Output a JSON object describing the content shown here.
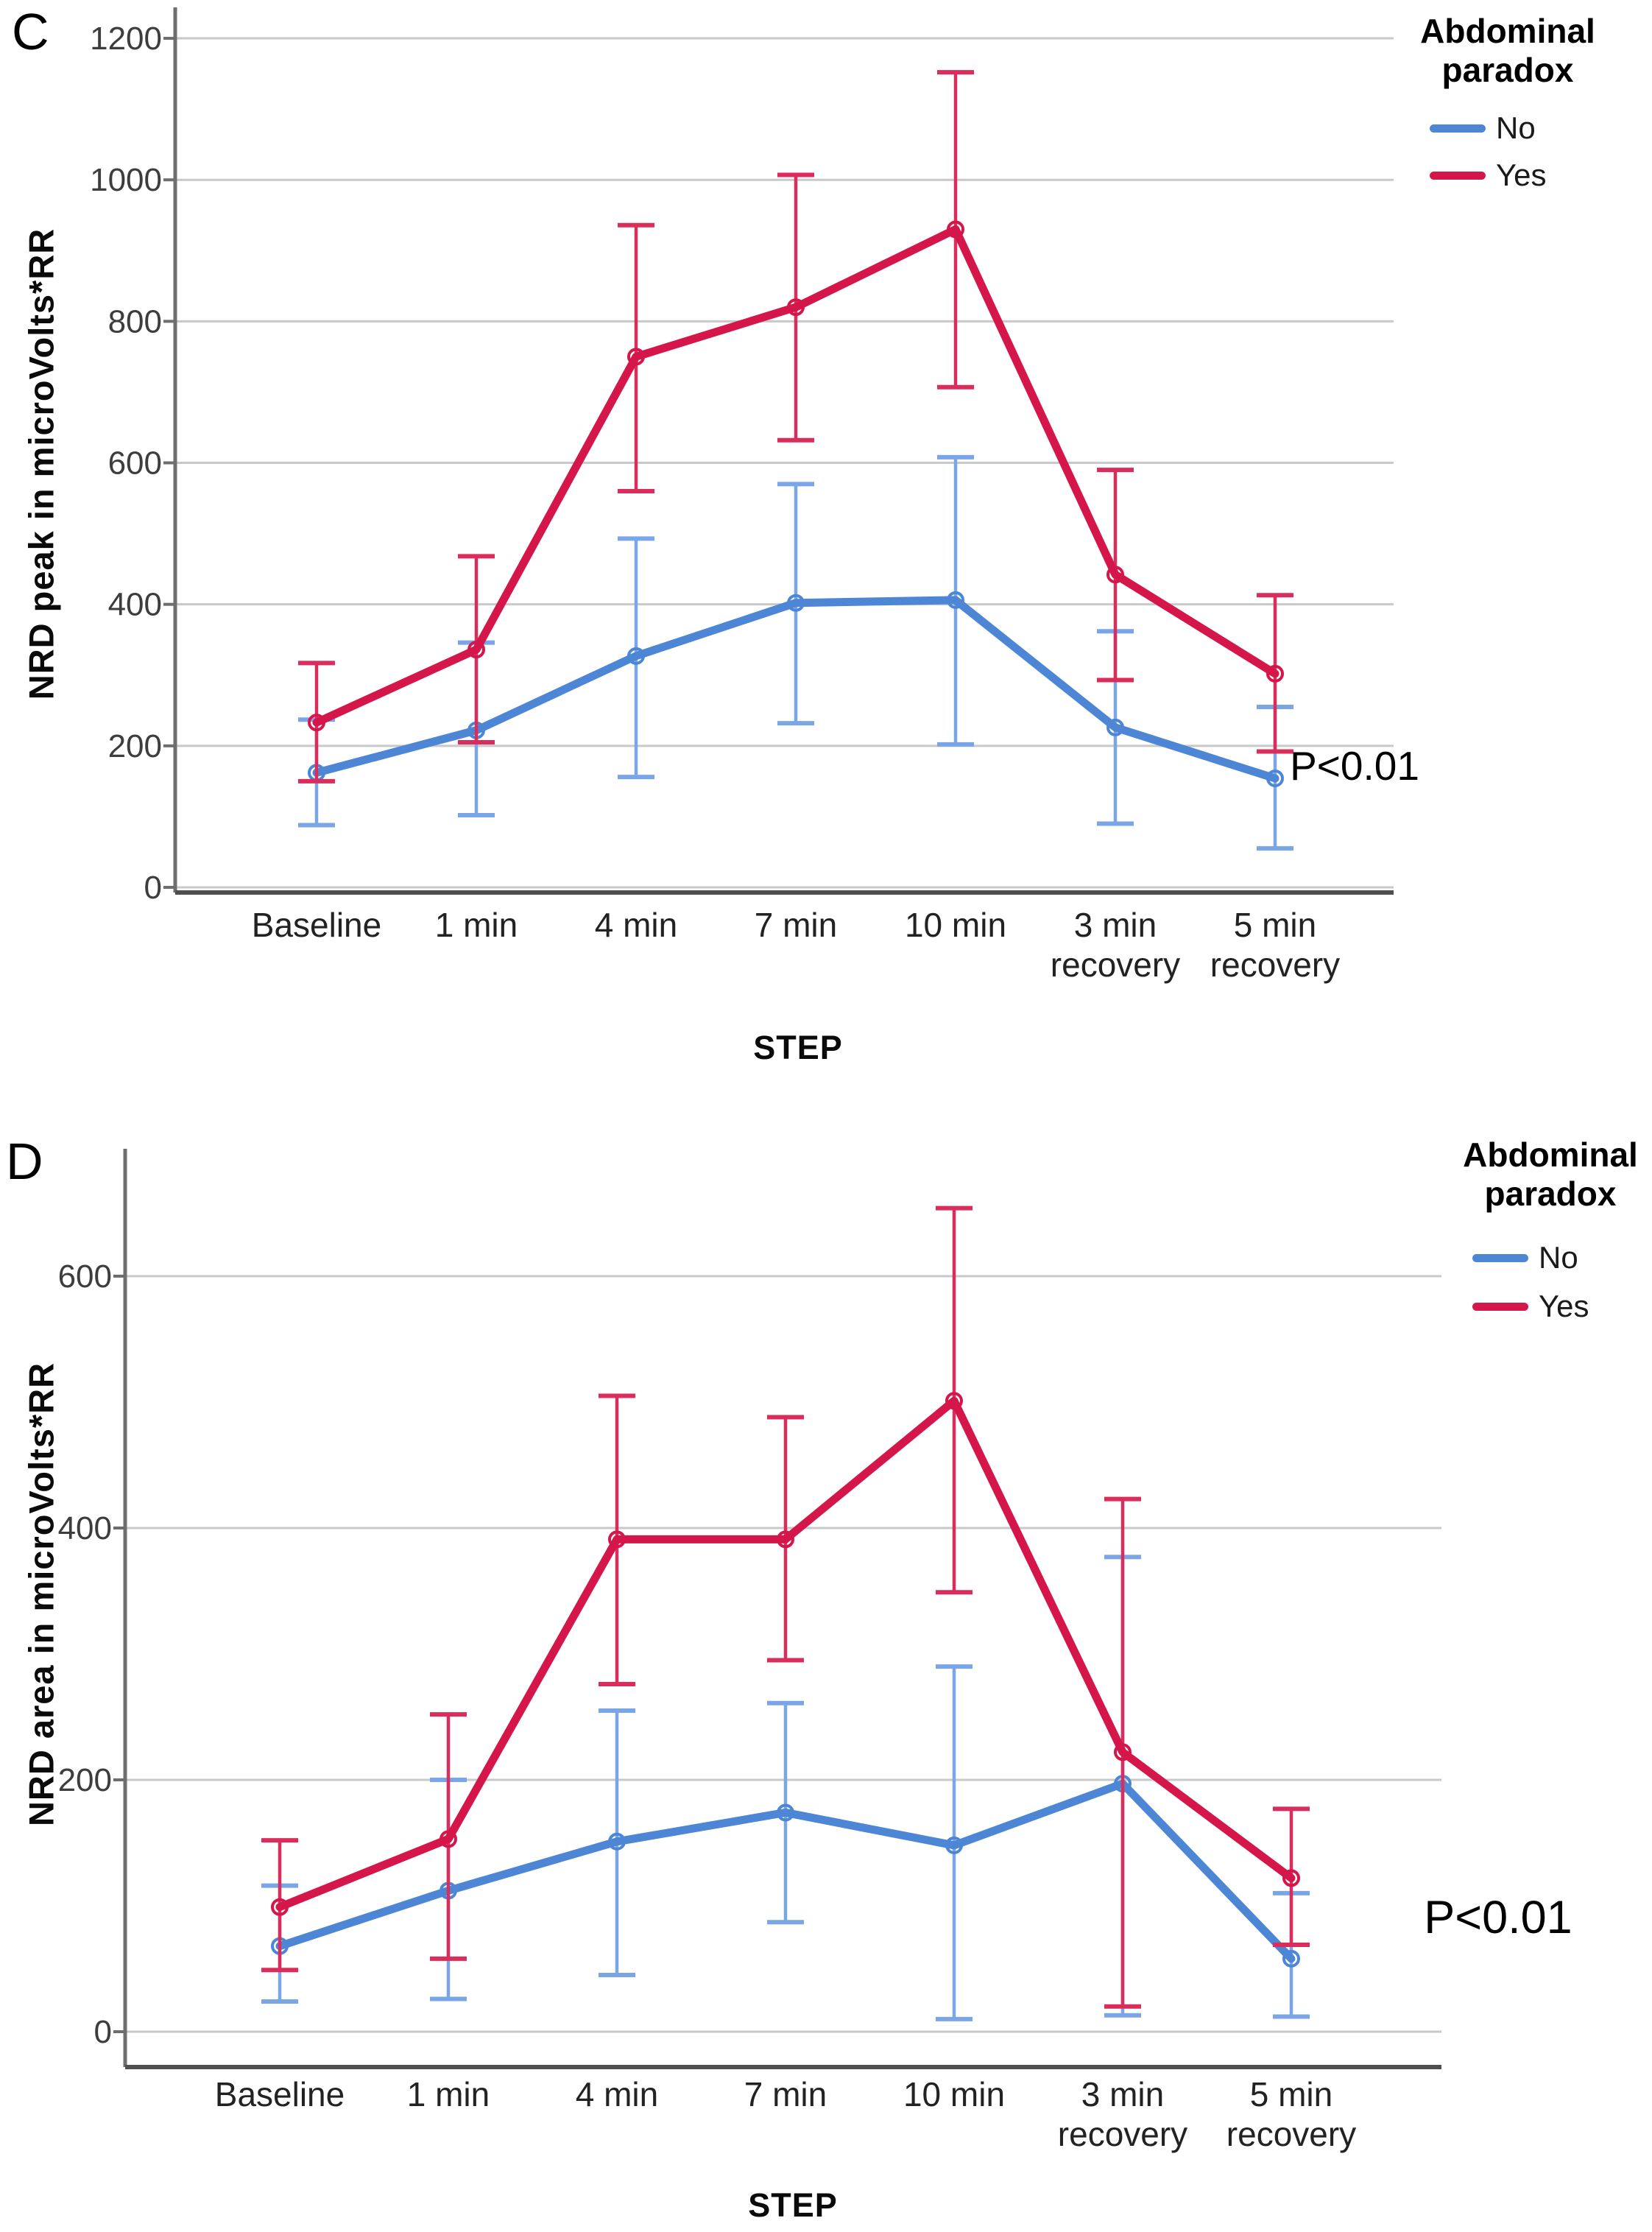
{
  "figure": {
    "background": "#ffffff",
    "grid_color": "#c9c9c9",
    "axis_color": "#6e6e6e",
    "frame_color": "#4f4f4f",
    "tick_text_color": "#3d3d3d"
  },
  "chart_data": [
    {
      "type": "line",
      "panel": "C",
      "ylabel": "NRD peak in microVolts*RR",
      "xlabel": "STEP",
      "annotation": "P<0.01",
      "legend_title": "Abdominal paradox",
      "ylim": [
        0,
        1245
      ],
      "yticks": [
        0,
        200,
        400,
        600,
        800,
        1000,
        1200
      ],
      "grid": true,
      "legend_position": "top-right-outside",
      "categories": [
        {
          "label": "Baseline",
          "sub": ""
        },
        {
          "label": "1 min",
          "sub": ""
        },
        {
          "label": "4 min",
          "sub": ""
        },
        {
          "label": "7 min",
          "sub": ""
        },
        {
          "label": "10 min",
          "sub": ""
        },
        {
          "label": "3 min",
          "sub": "recovery"
        },
        {
          "label": "5 min",
          "sub": "recovery"
        }
      ],
      "series": [
        {
          "name": "No",
          "color": "#4e86d6",
          "err_color": "#7aa6e8",
          "values": [
            162,
            222,
            327,
            402,
            406,
            226,
            154
          ],
          "upper": [
            237,
            346,
            493,
            570,
            608,
            362,
            255
          ],
          "lower": [
            88,
            102,
            156,
            232,
            202,
            90,
            55
          ]
        },
        {
          "name": "Yes",
          "color": "#d5164b",
          "err_color": "#db2d5c",
          "values": [
            233,
            336,
            750,
            820,
            930,
            442,
            302
          ],
          "upper": [
            317,
            468,
            936,
            1007,
            1152,
            590,
            413
          ],
          "lower": [
            150,
            205,
            560,
            632,
            707,
            293,
            192
          ]
        }
      ]
    },
    {
      "type": "line",
      "panel": "D",
      "ylabel": "NRD area in microVolts*RR",
      "xlabel": "STEP",
      "annotation": "P<0.01",
      "legend_title": "Abdominal paradox",
      "ylim": [
        0,
        700
      ],
      "yticks": [
        0,
        200,
        400,
        600
      ],
      "grid": true,
      "legend_position": "top-right-outside",
      "categories": [
        {
          "label": "Baseline",
          "sub": ""
        },
        {
          "label": "1 min",
          "sub": ""
        },
        {
          "label": "4 min",
          "sub": ""
        },
        {
          "label": "7 min",
          "sub": ""
        },
        {
          "label": "10 min",
          "sub": ""
        },
        {
          "label": "3 min",
          "sub": "recovery"
        },
        {
          "label": "5 min",
          "sub": "recovery"
        }
      ],
      "series": [
        {
          "name": "No",
          "color": "#4e86d6",
          "err_color": "#7aa6e8",
          "values": [
            68,
            112,
            151,
            174,
            148,
            197,
            58
          ],
          "upper": [
            116,
            200,
            255,
            261,
            290,
            377,
            110
          ],
          "lower": [
            24,
            26,
            45,
            87,
            10,
            13,
            12
          ]
        },
        {
          "name": "Yes",
          "color": "#d5164b",
          "err_color": "#db2d5c",
          "values": [
            99,
            153,
            391,
            391,
            501,
            222,
            122
          ],
          "upper": [
            152,
            252,
            505,
            488,
            654,
            423,
            177
          ],
          "lower": [
            49,
            58,
            276,
            295,
            349,
            20,
            69
          ]
        }
      ]
    }
  ]
}
